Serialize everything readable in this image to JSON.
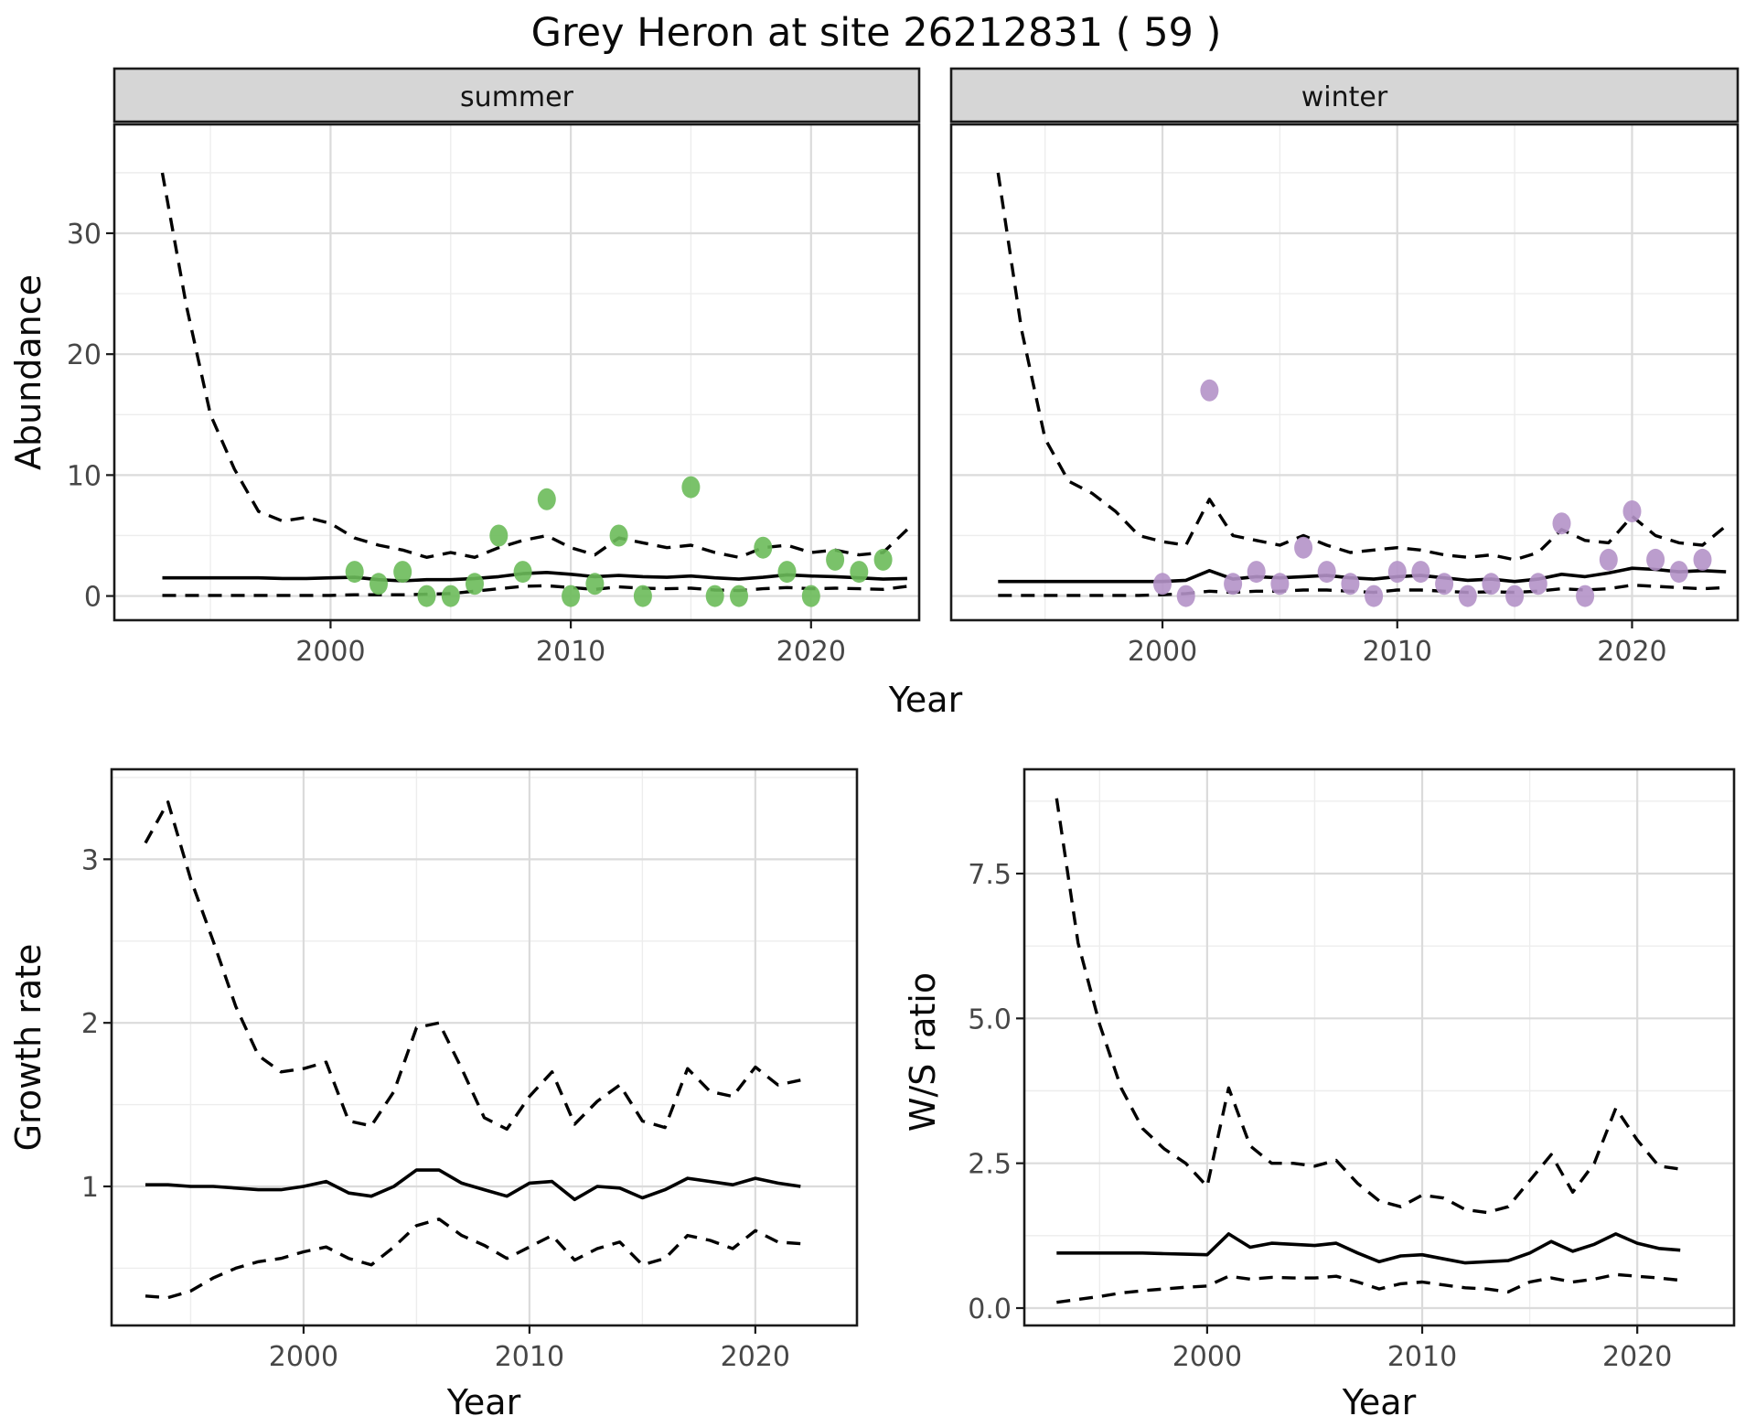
{
  "title": "Grey Heron at site 26212831 ( 59 )",
  "colors": {
    "summer_point": "#6CBB5A",
    "winter_point": "#B492C8",
    "line": "#000000",
    "strip_background": "#D6D6D6",
    "grid_major": "#DBDBDB",
    "grid_minor": "#EDEDED",
    "axis_text": "#474747",
    "panel_border": "#1a1a1a"
  },
  "chart_data": [
    {
      "id": "abundance-summer",
      "type": "line",
      "facet_label": "summer",
      "xlabel": "Year",
      "ylabel": "Abundance",
      "xlim": [
        1991.0,
        2024.5
      ],
      "ylim": [
        -2.0,
        39.0
      ],
      "x_ticks": [
        2000,
        2010,
        2020
      ],
      "x_tick_labels": [
        "2000",
        "2010",
        "2020"
      ],
      "x_minor": [
        1995,
        2005,
        2015
      ],
      "y_ticks": [
        0,
        10,
        20,
        30
      ],
      "y_tick_labels": [
        "0",
        "10",
        "20",
        "30"
      ],
      "y_minor": [
        5,
        15,
        25,
        35
      ],
      "line_years": [
        1993,
        1994,
        1995,
        1996,
        1997,
        1998,
        1999,
        2000,
        2001,
        2002,
        2003,
        2004,
        2005,
        2006,
        2007,
        2008,
        2009,
        2010,
        2011,
        2012,
        2013,
        2014,
        2015,
        2016,
        2017,
        2018,
        2019,
        2020,
        2021,
        2022,
        2023,
        2024
      ],
      "upper_ci": [
        35,
        24,
        15,
        10.5,
        7,
        6.2,
        6.5,
        6,
        4.8,
        4.2,
        3.8,
        3.2,
        3.6,
        3.2,
        4,
        4.6,
        5,
        4,
        3.4,
        4.8,
        4.4,
        4,
        4.2,
        3.6,
        3.2,
        4,
        4.2,
        3.6,
        3.8,
        3.4,
        3.6,
        5.5
      ],
      "fit": [
        1.5,
        1.5,
        1.5,
        1.5,
        1.5,
        1.45,
        1.45,
        1.5,
        1.55,
        1.35,
        1.25,
        1.35,
        1.35,
        1.45,
        1.6,
        1.85,
        1.95,
        1.8,
        1.6,
        1.7,
        1.6,
        1.55,
        1.65,
        1.5,
        1.4,
        1.55,
        1.75,
        1.65,
        1.6,
        1.5,
        1.4,
        1.45
      ],
      "lower_ci": [
        0.05,
        0.05,
        0.05,
        0.05,
        0.05,
        0.05,
        0.05,
        0.05,
        0.1,
        0.1,
        0.1,
        0.15,
        0.2,
        0.4,
        0.6,
        0.8,
        0.85,
        0.7,
        0.55,
        0.75,
        0.65,
        0.6,
        0.65,
        0.5,
        0.45,
        0.6,
        0.7,
        0.6,
        0.65,
        0.6,
        0.55,
        0.8
      ],
      "point_years": [
        2001,
        2002,
        2003,
        2004,
        2005,
        2006,
        2007,
        2008,
        2009,
        2010,
        2011,
        2012,
        2013,
        2015,
        2016,
        2017,
        2018,
        2019,
        2020,
        2021,
        2022,
        2023
      ],
      "point_values": [
        2,
        1,
        2,
        0,
        0,
        1,
        5,
        2,
        8,
        0,
        1,
        5,
        0,
        9,
        0,
        0,
        4,
        2,
        0,
        3,
        2,
        3
      ],
      "point_color": "#6CBB5A"
    },
    {
      "id": "abundance-winter",
      "type": "line",
      "facet_label": "winter",
      "xlabel": "Year",
      "ylabel": "Abundance",
      "xlim": [
        1991.0,
        2024.5
      ],
      "ylim": [
        -2.0,
        39.0
      ],
      "x_ticks": [
        2000,
        2010,
        2020
      ],
      "x_tick_labels": [
        "2000",
        "2010",
        "2020"
      ],
      "x_minor": [
        1995,
        2005,
        2015
      ],
      "y_ticks": [
        0,
        10,
        20,
        30
      ],
      "y_tick_labels": [],
      "y_minor": [
        5,
        15,
        25,
        35
      ],
      "line_years": [
        1993,
        1994,
        1995,
        1996,
        1997,
        1998,
        1999,
        2000,
        2001,
        2002,
        2003,
        2004,
        2005,
        2006,
        2007,
        2008,
        2009,
        2010,
        2011,
        2012,
        2013,
        2014,
        2015,
        2016,
        2017,
        2018,
        2019,
        2020,
        2021,
        2022,
        2023,
        2024
      ],
      "upper_ci": [
        35,
        22,
        13,
        9.5,
        8.5,
        7,
        5,
        4.5,
        4.2,
        8,
        5,
        4.6,
        4.2,
        5,
        4.2,
        3.6,
        3.8,
        4,
        3.8,
        3.4,
        3.2,
        3.4,
        3,
        3.6,
        5.5,
        4.6,
        4.4,
        6.6,
        5,
        4.4,
        4.2,
        5.8
      ],
      "fit": [
        1.2,
        1.2,
        1.2,
        1.2,
        1.2,
        1.2,
        1.2,
        1.2,
        1.3,
        2.1,
        1.4,
        1.6,
        1.5,
        1.6,
        1.7,
        1.5,
        1.4,
        1.6,
        1.7,
        1.5,
        1.3,
        1.4,
        1.2,
        1.4,
        1.8,
        1.6,
        1.9,
        2.3,
        2.2,
        2,
        2.1,
        2
      ],
      "lower_ci": [
        0.05,
        0.05,
        0.05,
        0.05,
        0.05,
        0.05,
        0.05,
        0.1,
        0.2,
        0.4,
        0.3,
        0.4,
        0.4,
        0.5,
        0.5,
        0.4,
        0.3,
        0.5,
        0.5,
        0.4,
        0.3,
        0.35,
        0.3,
        0.4,
        0.6,
        0.5,
        0.6,
        0.9,
        0.8,
        0.7,
        0.6,
        0.7
      ],
      "point_years": [
        2000,
        2001,
        2002,
        2003,
        2004,
        2005,
        2006,
        2007,
        2008,
        2009,
        2010,
        2011,
        2012,
        2013,
        2014,
        2015,
        2016,
        2017,
        2018,
        2019,
        2020,
        2021,
        2022,
        2023
      ],
      "point_values": [
        1,
        0,
        17,
        1,
        2,
        1,
        4,
        2,
        1,
        0,
        2,
        2,
        1,
        0,
        1,
        0,
        1,
        6,
        0,
        3,
        7,
        3,
        2,
        3
      ],
      "point_color": "#B492C8"
    },
    {
      "id": "growth-rate",
      "type": "line",
      "facet_label": "",
      "xlabel": "Year",
      "ylabel": "Growth rate",
      "xlim": [
        1991.5,
        2024.5
      ],
      "ylim": [
        0.15,
        3.55
      ],
      "x_ticks": [
        2000,
        2010,
        2020
      ],
      "x_tick_labels": [
        "2000",
        "2010",
        "2020"
      ],
      "x_minor": [
        1995,
        2005,
        2015
      ],
      "y_ticks": [
        1,
        2,
        3
      ],
      "y_tick_labels": [
        "1",
        "2",
        "3"
      ],
      "y_minor": [
        0.5,
        1.5,
        2.5,
        3.5
      ],
      "line_years": [
        1993,
        1994,
        1995,
        1996,
        1997,
        1998,
        1999,
        2000,
        2001,
        2002,
        2003,
        2004,
        2005,
        2006,
        2007,
        2008,
        2009,
        2010,
        2011,
        2012,
        2013,
        2014,
        2015,
        2016,
        2017,
        2018,
        2019,
        2020,
        2021,
        2022
      ],
      "upper_ci": [
        3.1,
        3.35,
        2.88,
        2.5,
        2.1,
        1.8,
        1.7,
        1.72,
        1.76,
        1.4,
        1.37,
        1.58,
        1.97,
        2.0,
        1.72,
        1.42,
        1.35,
        1.55,
        1.7,
        1.38,
        1.52,
        1.62,
        1.4,
        1.36,
        1.72,
        1.58,
        1.55,
        1.73,
        1.62,
        1.65
      ],
      "fit": [
        1.01,
        1.01,
        1.0,
        1.0,
        0.99,
        0.98,
        0.98,
        1.0,
        1.03,
        0.96,
        0.94,
        1.0,
        1.1,
        1.1,
        1.02,
        0.98,
        0.94,
        1.02,
        1.03,
        0.92,
        1.0,
        0.99,
        0.93,
        0.98,
        1.05,
        1.03,
        1.01,
        1.05,
        1.02,
        1.0
      ],
      "lower_ci": [
        0.33,
        0.32,
        0.36,
        0.44,
        0.5,
        0.54,
        0.56,
        0.6,
        0.63,
        0.56,
        0.52,
        0.63,
        0.76,
        0.8,
        0.7,
        0.64,
        0.56,
        0.63,
        0.7,
        0.55,
        0.62,
        0.66,
        0.52,
        0.56,
        0.7,
        0.67,
        0.62,
        0.73,
        0.66,
        0.65
      ],
      "point_years": [],
      "point_values": [],
      "point_color": "#000000"
    },
    {
      "id": "ws-ratio",
      "type": "line",
      "facet_label": "",
      "xlabel": "Year",
      "ylabel": "W/S ratio",
      "xlim": [
        1991.5,
        2024.5
      ],
      "ylim": [
        -0.3,
        9.3
      ],
      "x_ticks": [
        2000,
        2010,
        2020
      ],
      "x_tick_labels": [
        "2000",
        "2010",
        "2020"
      ],
      "x_minor": [
        1995,
        2005,
        2015
      ],
      "y_ticks": [
        0,
        2.5,
        5,
        7.5
      ],
      "y_tick_labels": [
        "0.0",
        "2.5",
        "5.0",
        "7.5"
      ],
      "y_minor": [
        1.25,
        3.75,
        6.25,
        8.75
      ],
      "line_years": [
        1993,
        1994,
        1995,
        1996,
        1997,
        1998,
        1999,
        2000,
        2001,
        2002,
        2003,
        2004,
        2005,
        2006,
        2007,
        2008,
        2009,
        2010,
        2011,
        2012,
        2013,
        2014,
        2015,
        2016,
        2017,
        2018,
        2019,
        2020,
        2021,
        2022
      ],
      "upper_ci": [
        8.8,
        6.3,
        4.9,
        3.8,
        3.1,
        2.75,
        2.5,
        2.1,
        3.8,
        2.8,
        2.5,
        2.5,
        2.45,
        2.55,
        2.15,
        1.85,
        1.75,
        1.95,
        1.9,
        1.7,
        1.65,
        1.75,
        2.2,
        2.65,
        2.0,
        2.5,
        3.45,
        2.9,
        2.45,
        2.4
      ],
      "fit": [
        0.95,
        0.95,
        0.95,
        0.95,
        0.95,
        0.94,
        0.93,
        0.92,
        1.28,
        1.05,
        1.12,
        1.1,
        1.08,
        1.12,
        0.95,
        0.8,
        0.9,
        0.92,
        0.85,
        0.78,
        0.8,
        0.82,
        0.95,
        1.15,
        0.98,
        1.1,
        1.28,
        1.12,
        1.03,
        1.0
      ],
      "lower_ci": [
        0.1,
        0.15,
        0.2,
        0.26,
        0.3,
        0.33,
        0.36,
        0.38,
        0.55,
        0.5,
        0.53,
        0.52,
        0.52,
        0.55,
        0.45,
        0.33,
        0.42,
        0.45,
        0.4,
        0.35,
        0.33,
        0.28,
        0.45,
        0.52,
        0.45,
        0.5,
        0.58,
        0.55,
        0.52,
        0.48
      ],
      "point_years": [],
      "point_values": [],
      "point_color": "#000000"
    }
  ]
}
